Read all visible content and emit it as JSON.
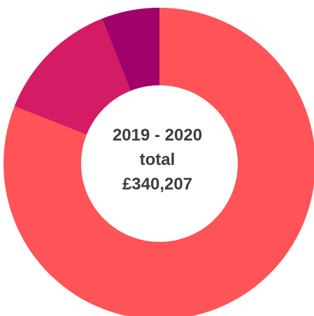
{
  "chart_data": {
    "type": "pie",
    "variant": "donut",
    "series": [
      {
        "value": 0.81,
        "color": "#fe5457"
      },
      {
        "value": 0.13,
        "color": "#d41b65"
      },
      {
        "value": 0.06,
        "color": "#a2006b"
      }
    ],
    "center_text": {
      "line1": "2019 - 2020",
      "line2": "total",
      "line3": "£340,207"
    },
    "legend": "none"
  }
}
